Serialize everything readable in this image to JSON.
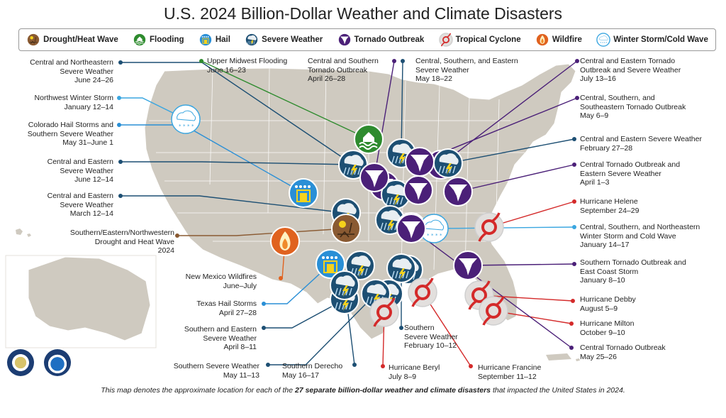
{
  "title": "U.S. 2024 Billion-Dollar Weather and Climate Disasters",
  "legend": [
    {
      "label": "Drought/Heat Wave",
      "color": "#8a5a32",
      "icon": "drought-icon"
    },
    {
      "label": "Flooding",
      "color": "#2e8b2e",
      "icon": "flood-icon"
    },
    {
      "label": "Hail",
      "color": "#2a8fd6",
      "icon": "hail-icon"
    },
    {
      "label": "Severe Weather",
      "color": "#1d4f73",
      "icon": "severe-weather-icon"
    },
    {
      "label": "Tornado Outbreak",
      "color": "#4b2078",
      "icon": "tornado-icon"
    },
    {
      "label": "Tropical Cyclone",
      "color": "#d42a2a",
      "icon": "cyclone-icon"
    },
    {
      "label": "Wildfire",
      "color": "#e0621f",
      "icon": "wildfire-icon"
    },
    {
      "label": "Winter Storm/Cold Wave",
      "color": "#3aa6e0",
      "icon": "winter-icon"
    }
  ],
  "events": [
    {
      "name": "Central and Northeastern Severe Weather",
      "dates": "June 24–26",
      "lines": [
        "Central and Northeastern",
        "Severe Weather",
        "June 24–26"
      ],
      "type": "severe",
      "color": "#1d4f73"
    },
    {
      "name": "Northwest Winter Storm",
      "dates": "January 12–14",
      "lines": [
        "Northwest Winter Storm",
        "January 12–14"
      ],
      "type": "winter",
      "color": "#3aa6e0"
    },
    {
      "name": "Colorado Hail Storms and Southern Severe Weather",
      "dates": "May 31–June 1",
      "lines": [
        "Colorado Hail Storms and",
        "Southern Severe Weather",
        "May 31–June 1"
      ],
      "type": "hail",
      "color": "#2a8fd6"
    },
    {
      "name": "Central and Eastern Severe Weather",
      "dates": "June 12–14",
      "lines": [
        "Central and Eastern",
        "Severe Weather",
        "June 12–14"
      ],
      "type": "severe",
      "color": "#1d4f73"
    },
    {
      "name": "Central and Eastern Severe Weather",
      "dates": "March 12–14",
      "lines": [
        "Central and Eastern",
        "Severe Weather",
        "March 12–14"
      ],
      "type": "severe",
      "color": "#1d4f73"
    },
    {
      "name": "Southern/Eastern/Northwestern Drought and Heat Wave",
      "dates": "2024",
      "lines": [
        "Southern/Eastern/Northwestern",
        "Drought and Heat Wave",
        "2024"
      ],
      "type": "drought",
      "color": "#8a5a32"
    },
    {
      "name": "New Mexico Wildfires",
      "dates": "June–July",
      "lines": [
        "New Mexico Wildfires",
        "June–July"
      ],
      "type": "wildfire",
      "color": "#e0621f"
    },
    {
      "name": "Texas Hail Storms",
      "dates": "April 27–28",
      "lines": [
        "Texas Hail Storms",
        "April 27–28"
      ],
      "type": "hail",
      "color": "#2a8fd6"
    },
    {
      "name": "Southern and Eastern Severe Weather",
      "dates": "April 8–11",
      "lines": [
        "Southern and Eastern",
        "Severe Weather",
        "April 8–11"
      ],
      "type": "severe",
      "color": "#1d4f73"
    },
    {
      "name": "Southern Severe Weather",
      "dates": "May 11–13",
      "lines": [
        "Southern Severe Weather",
        "May 11–13"
      ],
      "type": "severe",
      "color": "#1d4f73"
    },
    {
      "name": "Southern Derecho",
      "dates": "May 16–17",
      "lines": [
        "Southern Derecho",
        "May 16–17"
      ],
      "type": "severe",
      "color": "#1d4f73"
    },
    {
      "name": "Hurricane Beryl",
      "dates": "July 8–9",
      "lines": [
        "Hurricane Beryl",
        "July 8–9"
      ],
      "type": "cyclone",
      "color": "#d42a2a"
    },
    {
      "name": "Southern Severe Weather",
      "dates": "February 10–12",
      "lines": [
        "Southern",
        "Severe Weather",
        "February 10–12"
      ],
      "type": "severe",
      "color": "#1d4f73"
    },
    {
      "name": "Hurricane Francine",
      "dates": "September 11–12",
      "lines": [
        "Hurricane Francine",
        "September 11–12"
      ],
      "type": "cyclone",
      "color": "#d42a2a"
    },
    {
      "name": "Upper Midwest Flooding",
      "dates": "June 16–23",
      "lines": [
        "Upper Midwest Flooding",
        "June 16–23"
      ],
      "type": "flood",
      "color": "#2e8b2e"
    },
    {
      "name": "Central and Southern Tornado Outbreak",
      "dates": "April 26–28",
      "lines": [
        "Central and Southern",
        "Tornado Outbreak",
        "April 26–28"
      ],
      "type": "tornado",
      "color": "#4b2078"
    },
    {
      "name": "Central, Southern, and Eastern Severe Weather",
      "dates": "May 18–22",
      "lines": [
        "Central, Southern, and Eastern",
        "Severe Weather",
        "May 18–22"
      ],
      "type": "severe",
      "color": "#1d4f73"
    },
    {
      "name": "Central and Eastern Tornado Outbreak and Severe Weather",
      "dates": "July 13–16",
      "lines": [
        "Central and Eastern Tornado",
        "Outbreak and Severe Weather",
        "July 13–16"
      ],
      "type": "tornado",
      "color": "#4b2078"
    },
    {
      "name": "Central, Southern, and Southeastern Tornado Outbreak",
      "dates": "May 6–9",
      "lines": [
        "Central, Southern, and",
        "Southeastern Tornado Outbreak",
        "May 6–9"
      ],
      "type": "tornado",
      "color": "#4b2078"
    },
    {
      "name": "Central and Eastern Severe Weather",
      "dates": "February 27–28",
      "lines": [
        "Central and Eastern Severe Weather",
        "February 27–28"
      ],
      "type": "severe",
      "color": "#1d4f73"
    },
    {
      "name": "Central Tornado Outbreak and Eastern Severe Weather",
      "dates": "April 1–3",
      "lines": [
        "Central Tornado Outbreak and",
        "Eastern Severe Weather",
        "April 1–3"
      ],
      "type": "tornado",
      "color": "#4b2078"
    },
    {
      "name": "Hurricane Helene",
      "dates": "September 24–29",
      "lines": [
        "Hurricane Helene",
        "September 24–29"
      ],
      "type": "cyclone",
      "color": "#d42a2a"
    },
    {
      "name": "Central, Southern, and Northeastern Winter Storm and Cold Wave",
      "dates": "January 14–17",
      "lines": [
        "Central, Southern, and Northeastern",
        "Winter Storm and Cold Wave",
        "January 14–17"
      ],
      "type": "winter",
      "color": "#3aa6e0"
    },
    {
      "name": "Southern Tornado Outbreak and East Coast Storm",
      "dates": "January 8–10",
      "lines": [
        "Southern Tornado Outbreak and",
        "East Coast Storm",
        "January 8–10"
      ],
      "type": "tornado",
      "color": "#4b2078"
    },
    {
      "name": "Hurricane Debby",
      "dates": "August 5–9",
      "lines": [
        "Hurricane Debby",
        "August 5–9"
      ],
      "type": "cyclone",
      "color": "#d42a2a"
    },
    {
      "name": "Hurricane Milton",
      "dates": "October 9–10",
      "lines": [
        "Hurricane Milton",
        "October 9–10"
      ],
      "type": "cyclone",
      "color": "#d42a2a"
    },
    {
      "name": "Central Tornado Outbreak",
      "dates": "May 25–26",
      "lines": [
        "Central Tornado Outbreak",
        "May 25–26"
      ],
      "type": "tornado",
      "color": "#4b2078"
    }
  ],
  "footnote": {
    "pre": "This map denotes the approximate location for each of the ",
    "bold": "27 separate billion-dollar weather and climate disasters",
    "post": " that impacted the United States in 2024."
  }
}
